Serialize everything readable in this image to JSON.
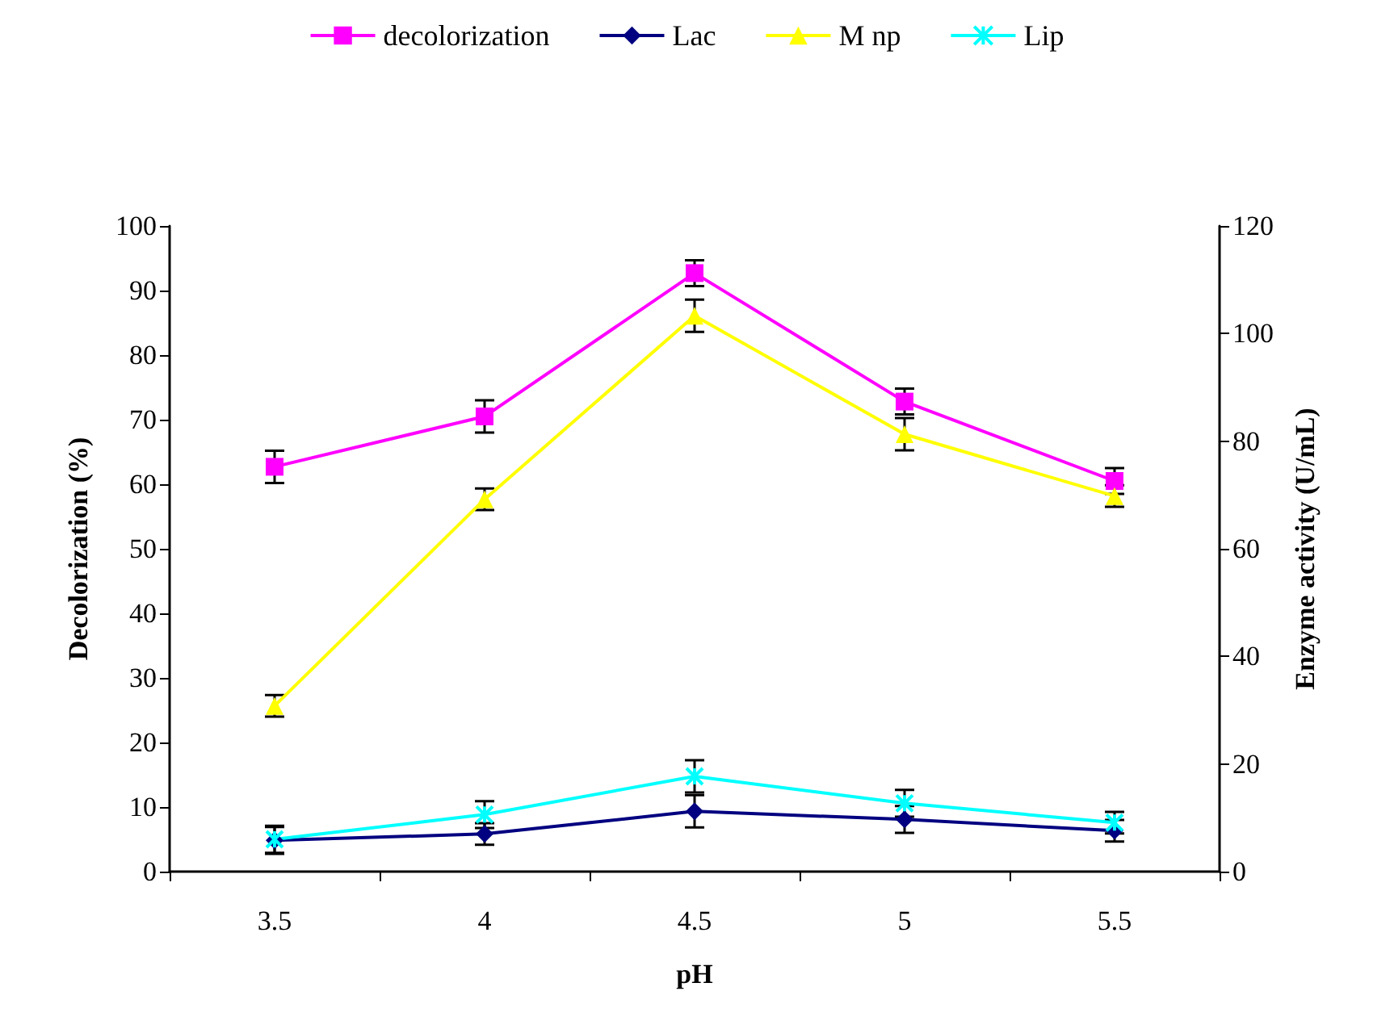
{
  "chart_data": {
    "type": "line",
    "xlabel": "pH",
    "ylabel": "Decolorization (%)",
    "y2label": "Enzyme activity (U/mL)",
    "categories": [
      "3.5",
      "4",
      "4.5",
      "5",
      "5.5"
    ],
    "ylim": [
      0,
      100
    ],
    "yticks": [
      0,
      10,
      20,
      30,
      40,
      50,
      60,
      70,
      80,
      90,
      100
    ],
    "y2lim": [
      0,
      120
    ],
    "y2ticks": [
      0,
      20,
      40,
      60,
      80,
      100,
      120
    ],
    "grid": false,
    "legend": "top",
    "series": [
      {
        "name": "decolorization",
        "color": "#ff00ff",
        "marker": "square",
        "values": [
          62.7,
          70.5,
          92.7,
          72.8,
          60.5
        ],
        "errors": [
          2.5,
          2.5,
          2,
          2,
          2
        ]
      },
      {
        "name": "Lac",
        "color": "#000080",
        "marker": "diamond",
        "axis": "y2",
        "values": [
          5.8,
          7,
          11.2,
          9.7,
          7.6
        ],
        "errors": [
          2.5,
          2,
          3,
          2.5,
          2
        ]
      },
      {
        "name": "M np",
        "color": "#ffff00",
        "marker": "triangle",
        "axis": "y2",
        "values": [
          30.8,
          69.2,
          103.3,
          81.3,
          69.8
        ],
        "errors": [
          2,
          2,
          3,
          3,
          2
        ]
      },
      {
        "name": "Lip",
        "color": "#00ffff",
        "marker": "cross",
        "axis": "y2",
        "values": [
          6,
          10.6,
          17.7,
          12.7,
          9.1
        ],
        "errors": [
          2.5,
          2.5,
          3,
          2.5,
          2
        ]
      }
    ]
  }
}
